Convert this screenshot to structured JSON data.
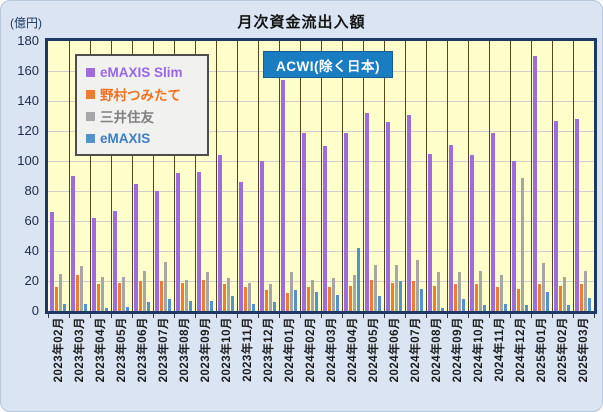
{
  "window": {
    "title": "月次資金流出入額",
    "unit_label": "(億円)"
  },
  "annotation": {
    "label": "ACWI(除く日本)",
    "bg_color": "#1A7CC1",
    "text_color": "#FFFFFF"
  },
  "legend": {
    "items": [
      {
        "label": "eMAXIS Slim",
        "color": "#9E6CDC",
        "text_color": "#9966E6"
      },
      {
        "label": "野村つみたて",
        "color": "#ED7D31",
        "text_color": "#ED7222"
      },
      {
        "label": "三井住友",
        "color": "#A6A6A6",
        "text_color": "#808080"
      },
      {
        "label": "eMAXIS",
        "color": "#5292CF",
        "text_color": "#3E7DC2"
      }
    ]
  },
  "colors": {
    "card_bg": "#DAE4F2",
    "plot_bg": "#FFFFCC",
    "plot_border": "#1F3864",
    "gridline": "#CFCFCF",
    "month_separator": "#57471E",
    "axis_text": "#1E2A4A"
  },
  "chart_data": {
    "type": "bar",
    "title": "月次資金流出入額",
    "ylabel": "(億円)",
    "xlabel": "",
    "ylim": [
      0,
      180
    ],
    "ytick_step": 20,
    "grid": true,
    "legend_position": "top-left-inside",
    "annotation": "ACWI(除く日本)",
    "categories": [
      "2023年02月",
      "2023年03月",
      "2023年04月",
      "2023年05月",
      "2023年06月",
      "2023年07月",
      "2023年08月",
      "2023年09月",
      "2023年10月",
      "2023年11月",
      "2023年12月",
      "2024年01月",
      "2024年02月",
      "2024年03月",
      "2024年04月",
      "2024年05月",
      "2024年06月",
      "2024年07月",
      "2024年08月",
      "2024年09月",
      "2024年10月",
      "2024年11月",
      "2024年12月",
      "2025年01月",
      "2025年02月",
      "2025年03月"
    ],
    "series": [
      {
        "name": "eMAXIS Slim",
        "color": "#9E6CDC",
        "values": [
          66,
          90,
          62,
          67,
          85,
          80,
          92,
          93,
          104,
          86,
          100,
          154,
          119,
          110,
          119,
          132,
          126,
          131,
          105,
          111,
          104,
          119,
          100,
          170,
          127,
          128
        ]
      },
      {
        "name": "野村つみたて",
        "color": "#ED7D31",
        "values": [
          16,
          24,
          18,
          19,
          20,
          20,
          19,
          21,
          18,
          16,
          14,
          12,
          16,
          16,
          17,
          21,
          19,
          20,
          17,
          18,
          18,
          16,
          15,
          18,
          17,
          18
        ]
      },
      {
        "name": "三井住友",
        "color": "#A6A6A6",
        "values": [
          25,
          30,
          23,
          23,
          27,
          33,
          21,
          26,
          22,
          19,
          18,
          26,
          21,
          22,
          24,
          31,
          31,
          34,
          26,
          26,
          27,
          24,
          89,
          32,
          23,
          27
        ]
      },
      {
        "name": "eMAXIS",
        "color": "#5292CF",
        "values": [
          5,
          5,
          2,
          3,
          6,
          8,
          7,
          7,
          10,
          5,
          6,
          14,
          13,
          11,
          42,
          10,
          20,
          15,
          2,
          8,
          4,
          5,
          4,
          13,
          4,
          9
        ]
      }
    ]
  }
}
